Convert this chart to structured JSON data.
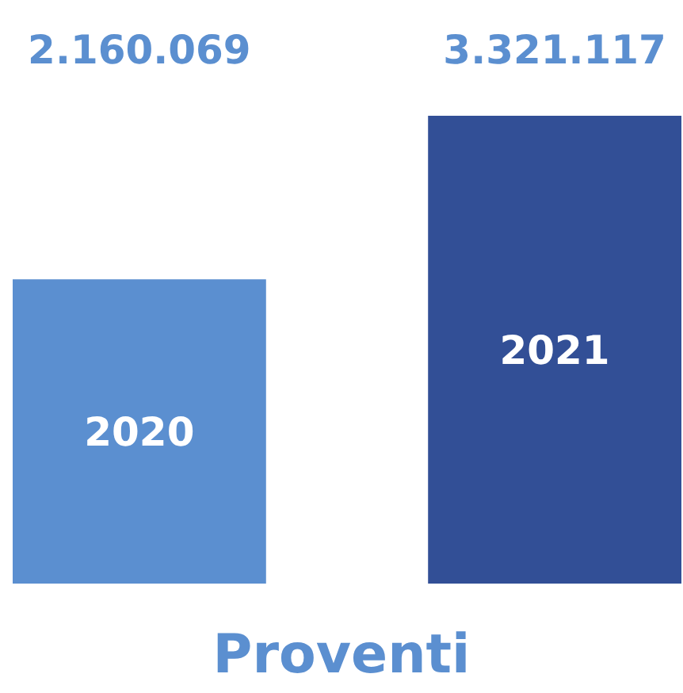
{
  "chart_data": {
    "type": "bar",
    "title": "Proventi",
    "categories": [
      "2020",
      "2021"
    ],
    "values": [
      2160069,
      3321117
    ],
    "colors": [
      "#5b8fd0",
      "#324f96"
    ],
    "value_labels": [
      "2.160.069",
      "3.321.117"
    ]
  }
}
